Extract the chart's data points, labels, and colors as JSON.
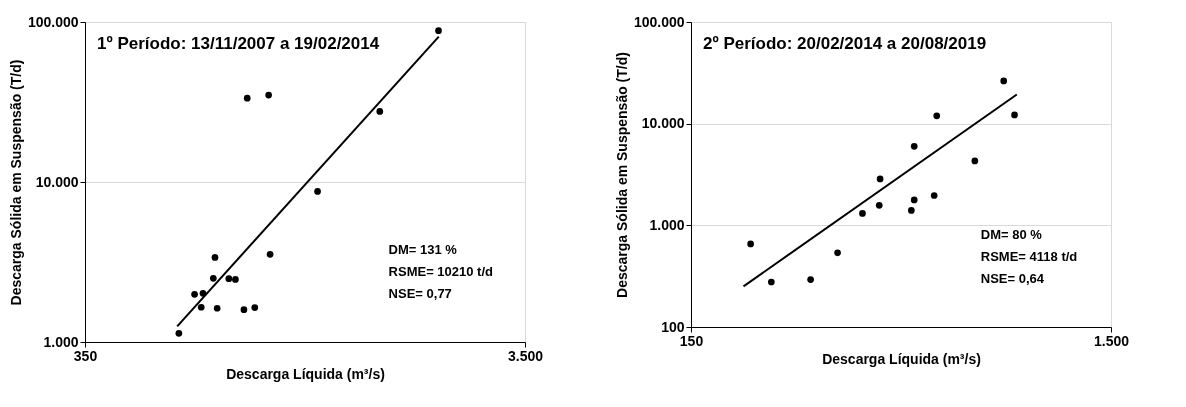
{
  "chart_data": [
    {
      "type": "scatter",
      "title": "1º Período: 13/11/2007 a 19/02/2014",
      "xlabel": "Descarga Líquida (m³/s)",
      "ylabel": "Descarga Sólida em Suspensão (T/d)",
      "log": "xy",
      "xlim": [
        350,
        3500
      ],
      "xticks": [
        350,
        {
          "value": 3500,
          "label": "3.500"
        }
      ],
      "ylim": [
        1000,
        100000
      ],
      "yticks": [
        {
          "value": 1000,
          "label": "1.000"
        },
        {
          "value": 10000,
          "label": "10.000"
        },
        {
          "value": 100000,
          "label": "100.000"
        }
      ],
      "grid": "y",
      "series": [
        {
          "color": "#000000",
          "marker": "circle",
          "x": [
            572,
            621,
            649,
            643,
            685,
            691,
            699,
            743,
            769,
            804,
            851,
            818,
            915,
            922,
            1182,
            1637,
            2226
          ],
          "values": [
            1133,
            1986,
            2015,
            1649,
            2500,
            3377,
            1625,
            2487,
            2460,
            1593,
            1642,
            33420,
            34930,
            3530,
            8737,
            27630,
            88270
          ]
        },
        {
          "type": "line",
          "color": "#000000",
          "marker": "none",
          "x": [
            567,
            2229
          ],
          "values": [
            1253,
            81080
          ]
        }
      ],
      "annotations": [
        "DM= 131 %",
        "RSME= 10210 t/d",
        "NSE= 0,77"
      ]
    },
    {
      "type": "scatter",
      "title": "2º Período: 20/02/2014 a 20/08/2019",
      "xlabel": "Descarga Líquida (m³/s)",
      "ylabel": "Descarga Sólida em Suspensão (T/d)",
      "log": "xy",
      "xlim": [
        150,
        1500
      ],
      "xticks": [
        150,
        {
          "value": 1500,
          "label": "1.500"
        }
      ],
      "ylim": [
        100,
        100000
      ],
      "yticks": [
        100,
        {
          "value": 1000,
          "label": "1.000"
        },
        {
          "value": 10000,
          "label": "10.000"
        },
        {
          "value": 100000,
          "label": "100.000"
        }
      ],
      "grid": "y",
      "series": [
        {
          "color": "#000000",
          "marker": "circle",
          "x": [
            208,
            233,
            289,
            335,
            384,
            421,
            423,
            502,
            510,
            510,
            569,
            577,
            711,
            833,
            884
          ],
          "values": [
            656,
            277,
            293,
            537,
            1308,
            1572,
            2861,
            1402,
            1778,
            5980,
            1965,
            11930,
            4300,
            26300,
            12200
          ]
        },
        {
          "type": "line",
          "color": "#000000",
          "marker": "none",
          "x": [
            200,
            895
          ],
          "values": [
            251,
            19360
          ]
        }
      ],
      "annotations": [
        "DM= 80 %",
        "RSME= 4118 t/d",
        "NSE= 0,64"
      ]
    }
  ]
}
